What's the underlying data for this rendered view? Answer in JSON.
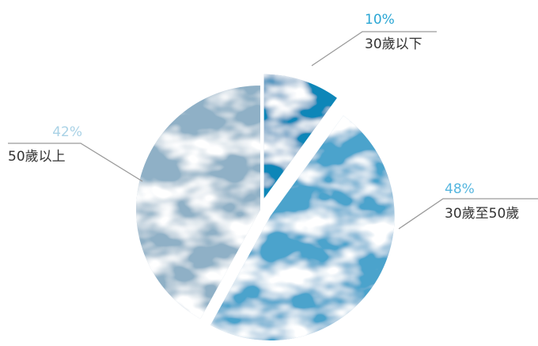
{
  "chart_data": {
    "type": "pie",
    "slices": [
      {
        "label": "30歲以下",
        "value": 10,
        "value_label": "10%",
        "color": "#0a86b8",
        "exploded": true
      },
      {
        "label": "30歲至50歲",
        "value": 48,
        "value_label": "48%",
        "color": "#4ba3cc",
        "exploded": true
      },
      {
        "label": "50歲以上",
        "value": 42,
        "value_label": "42%",
        "color": "#8fb0c6",
        "exploded": false
      }
    ],
    "label_colors": [
      "#2aa6d4",
      "#55b6df",
      "#a9d2e6"
    ],
    "texture": "water-caustics"
  }
}
